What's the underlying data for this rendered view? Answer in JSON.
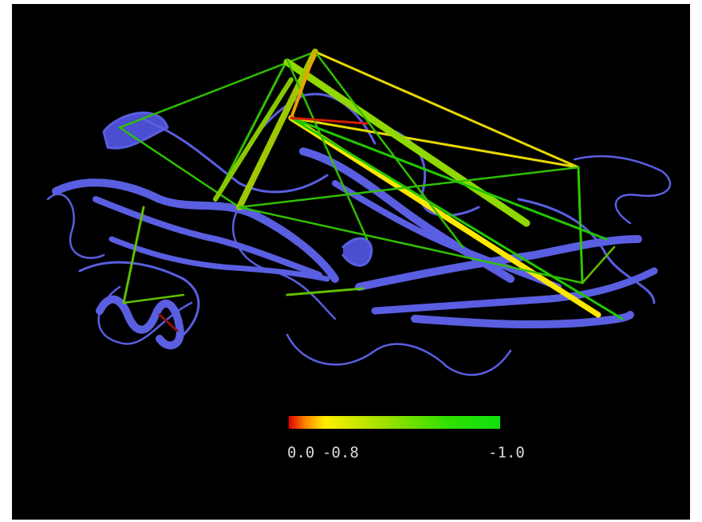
{
  "colorbar": {
    "labels": [
      "0.0",
      "-0.8",
      "-1.0"
    ]
  }
}
